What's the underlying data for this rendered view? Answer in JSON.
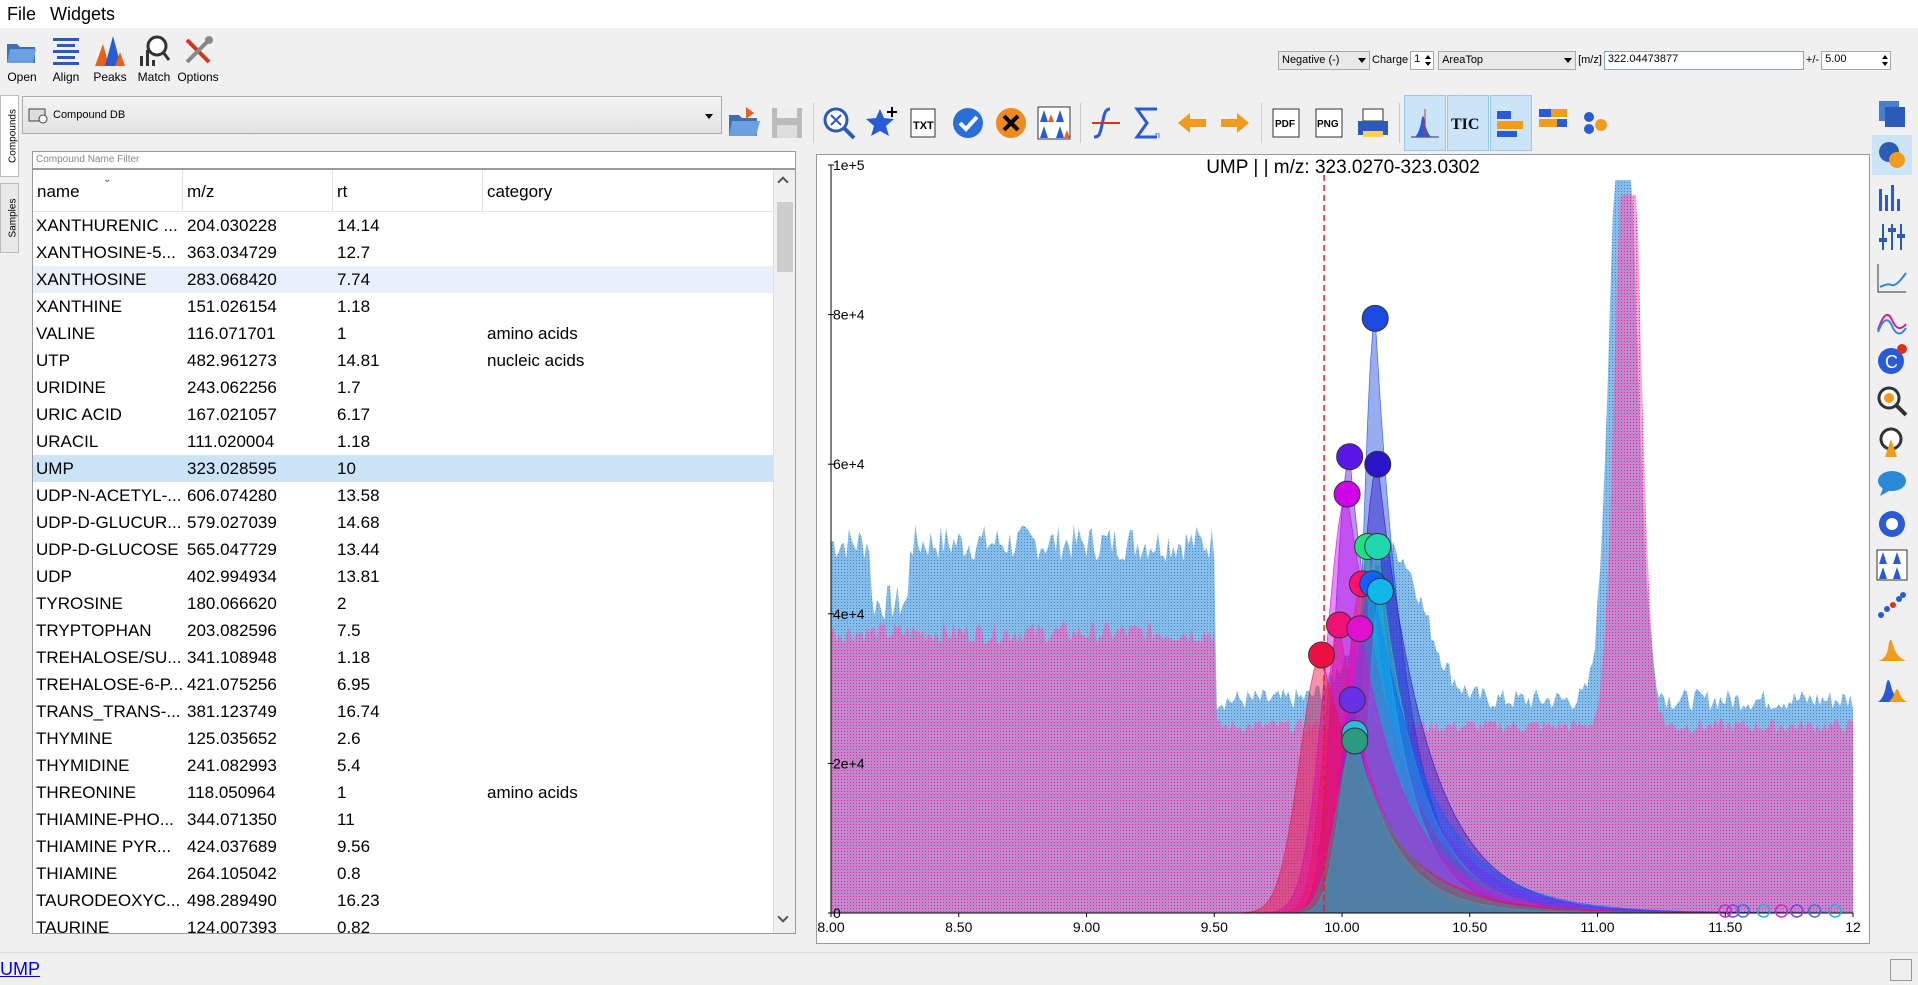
{
  "menu": [
    "File",
    "Widgets"
  ],
  "toolbar": {
    "open": "Open",
    "align": "Align",
    "peaks": "Peaks",
    "match": "Match",
    "options": "Options"
  },
  "params": {
    "ionization": "Negative (-)",
    "charge_label": "Charge",
    "charge": "1",
    "quant": "AreaTop",
    "mz_label": "[m/z]",
    "mz": "322.04473877",
    "tol_label": "+/-",
    "tol": "5.00"
  },
  "tabs": [
    "Compounds",
    "Samples"
  ],
  "db": {
    "label": "Compound DB"
  },
  "filter": {
    "placeholder": "Compound Name Filter"
  },
  "table": {
    "columns": [
      "name",
      "m/z",
      "rt",
      "category"
    ],
    "rows": [
      {
        "name": "XANTHURENIC ...",
        "mz": "204.030228",
        "rt": "14.14",
        "cat": ""
      },
      {
        "name": "XANTHOSINE-5...",
        "mz": "363.034729",
        "rt": "12.7",
        "cat": ""
      },
      {
        "name": "XANTHOSINE",
        "mz": "283.068420",
        "rt": "7.74",
        "cat": ""
      },
      {
        "name": "XANTHINE",
        "mz": "151.026154",
        "rt": "1.18",
        "cat": ""
      },
      {
        "name": "VALINE",
        "mz": "116.071701",
        "rt": "1",
        "cat": "amino acids"
      },
      {
        "name": "UTP",
        "mz": "482.961273",
        "rt": "14.81",
        "cat": "nucleic acids"
      },
      {
        "name": "URIDINE",
        "mz": "243.062256",
        "rt": "1.7",
        "cat": ""
      },
      {
        "name": "URIC ACID",
        "mz": "167.021057",
        "rt": "6.17",
        "cat": ""
      },
      {
        "name": "URACIL",
        "mz": "111.020004",
        "rt": "1.18",
        "cat": ""
      },
      {
        "name": "UMP",
        "mz": "323.028595",
        "rt": "10",
        "cat": ""
      },
      {
        "name": "UDP-N-ACETYL-...",
        "mz": "606.074280",
        "rt": "13.58",
        "cat": ""
      },
      {
        "name": "UDP-D-GLUCUR...",
        "mz": "579.027039",
        "rt": "14.68",
        "cat": ""
      },
      {
        "name": "UDP-D-GLUCOSE",
        "mz": "565.047729",
        "rt": "13.44",
        "cat": ""
      },
      {
        "name": "UDP",
        "mz": "402.994934",
        "rt": "13.81",
        "cat": ""
      },
      {
        "name": "TYROSINE",
        "mz": "180.066620",
        "rt": "2",
        "cat": ""
      },
      {
        "name": "TRYPTOPHAN",
        "mz": "203.082596",
        "rt": "7.5",
        "cat": ""
      },
      {
        "name": "TREHALOSE/SU...",
        "mz": "341.108948",
        "rt": "1.18",
        "cat": ""
      },
      {
        "name": "TREHALOSE-6-P...",
        "mz": "421.075256",
        "rt": "6.95",
        "cat": ""
      },
      {
        "name": "TRANS_TRANS-...",
        "mz": "381.123749",
        "rt": "16.74",
        "cat": ""
      },
      {
        "name": "THYMINE",
        "mz": "125.035652",
        "rt": "2.6",
        "cat": ""
      },
      {
        "name": "THYMIDINE",
        "mz": "241.082993",
        "rt": "5.4",
        "cat": ""
      },
      {
        "name": "THREONINE",
        "mz": "118.050964",
        "rt": "1",
        "cat": "amino acids"
      },
      {
        "name": "THIAMINE-PHO...",
        "mz": "344.071350",
        "rt": "11",
        "cat": ""
      },
      {
        "name": "THIAMINE PYR...",
        "mz": "424.037689",
        "rt": "9.56",
        "cat": ""
      },
      {
        "name": "THIAMINE",
        "mz": "264.105042",
        "rt": "0.8",
        "cat": ""
      },
      {
        "name": "TAURODEOXYC...",
        "mz": "498.289490",
        "rt": "16.23",
        "cat": ""
      },
      {
        "name": "TAURINE",
        "mz": "124.007393",
        "rt": "0.82",
        "cat": ""
      }
    ]
  },
  "chart_data": {
    "type": "area",
    "title": "UMP |  | m/z: 323.0270-323.0302",
    "xlim": [
      8.0,
      12.0
    ],
    "ylim": [
      0,
      100000
    ],
    "x_ticks": [
      "8.00",
      "8.50",
      "9.00",
      "9.50",
      "10.00",
      "10.50",
      "11.00",
      "11.50",
      "12"
    ],
    "y_ticks": [
      "0",
      "2e+4",
      "4e+4",
      "6e+4",
      "8e+4",
      "1e+5"
    ],
    "expected_rt": 9.93,
    "peak_markers": [
      {
        "rt": 10.13,
        "y": 79500,
        "color": "#1b4ae0"
      },
      {
        "rt": 10.03,
        "y": 61000,
        "color": "#5a17e8"
      },
      {
        "rt": 10.14,
        "y": 60000,
        "color": "#2a16c8"
      },
      {
        "rt": 10.02,
        "y": 56000,
        "color": "#d000e8"
      },
      {
        "rt": 10.1,
        "y": 49000,
        "color": "#20e080"
      },
      {
        "rt": 10.14,
        "y": 49000,
        "color": "#20d8b0"
      },
      {
        "rt": 10.08,
        "y": 44000,
        "color": "#ff1070"
      },
      {
        "rt": 10.12,
        "y": 44000,
        "color": "#1060ff"
      },
      {
        "rt": 10.15,
        "y": 43000,
        "color": "#10b8e8"
      },
      {
        "rt": 9.99,
        "y": 38500,
        "color": "#f0107a"
      },
      {
        "rt": 10.07,
        "y": 38000,
        "color": "#e010d0"
      },
      {
        "rt": 9.92,
        "y": 34500,
        "color": "#ee1040"
      },
      {
        "rt": 10.04,
        "y": 28500,
        "color": "#6a30e8"
      },
      {
        "rt": 10.05,
        "y": 24000,
        "color": "#30b8e0"
      },
      {
        "rt": 10.05,
        "y": 23000,
        "color": "#2a9a80"
      }
    ]
  },
  "status": {
    "link": "UMP"
  }
}
